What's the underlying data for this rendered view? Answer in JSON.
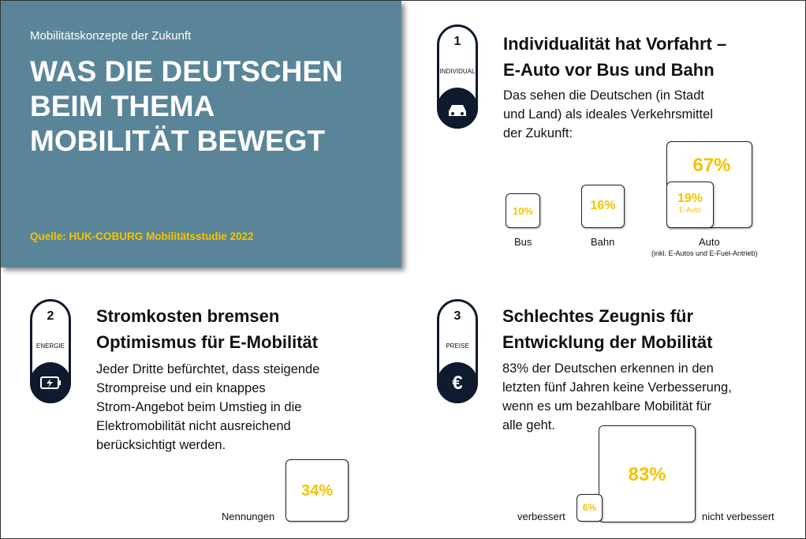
{
  "header": {
    "kicker": "Mobilitätskonzepte der Zukunft",
    "title_lines": [
      "WAS DIE DEUTSCHEN",
      "BEIM THEMA",
      "MOBILITÄT BEWEGT"
    ],
    "source": "Quelle: HUK-COBURG Mobilitätsstudie 2022"
  },
  "sections": [
    {
      "number": "1",
      "badge": "INDIVIDUAL",
      "title_lines": [
        "Individualität hat Vorfahrt –",
        "E-Auto vor Bus und Bahn"
      ],
      "body_lines": [
        "Das sehen die Deutschen (in Stadt",
        "und Land) als ideales Verkehrsmittel",
        "der Zukunft:"
      ],
      "items": [
        {
          "value": "10%",
          "label": "Bus"
        },
        {
          "value": "16%",
          "label": "Bahn"
        },
        {
          "value": "67%",
          "label": "Auto",
          "note": "(inkl. E-Autos und E-Fuel-Antrieb)",
          "sub_value": "19%",
          "sub_label": "E-Auto"
        }
      ]
    },
    {
      "number": "2",
      "badge": "ENERGIE",
      "title_lines": [
        "Stromkosten bremsen",
        "Optimismus für E-Mobilität"
      ],
      "body_lines": [
        "Jeder Dritte befürchtet, dass steigende",
        "Strompreise und ein knappes",
        "Strom-Angebot beim Umstieg in die",
        "Elektromobilität nicht ausreichend",
        "berücksichtigt werden."
      ],
      "items": [
        {
          "value": "34%",
          "label": "Nennungen"
        }
      ]
    },
    {
      "number": "3",
      "badge": "PREISE",
      "title_lines": [
        "Schlechtes Zeugnis für",
        "Entwicklung der Mobilität"
      ],
      "body_lines": [
        "83% der Deutschen erkennen in den",
        "letzten fünf Jahren keine Verbesserung,",
        "wenn es um bezahlbare Mobilität für",
        "alle geht."
      ],
      "items": [
        {
          "value": "6%",
          "label": "verbessert"
        },
        {
          "value": "83%",
          "label": "nicht verbessert"
        }
      ]
    }
  ]
}
